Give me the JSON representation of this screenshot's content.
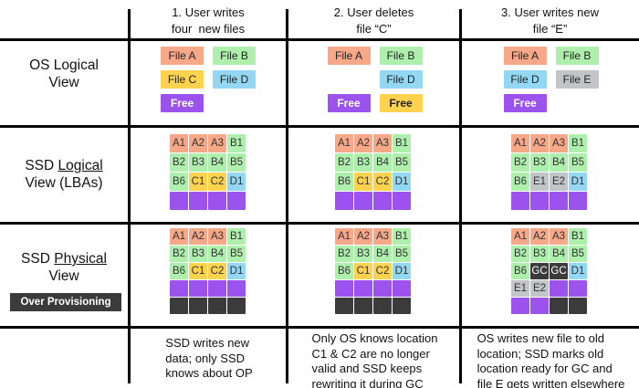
{
  "colors": {
    "file_a_salmon": "#F6A888",
    "file_b_green": "#AFEFAE",
    "file_c_yellow": "#FCD24E",
    "file_d_blue": "#93D7F3",
    "file_e_gray": "#C1C5C7",
    "free_purple": "#9C53EE",
    "dark_overprovision": "#3B3B3B",
    "border_black": "#000000"
  },
  "row_labels": {
    "os": {
      "line1": "OS Logical",
      "line2": "View"
    },
    "logical": {
      "pre": "SSD ",
      "word": "Logical",
      "line2": "View (LBAs)"
    },
    "physical": {
      "pre": "SSD ",
      "word": "Physical",
      "line2": "View"
    },
    "over_provisioning": "Over Provisioning"
  },
  "columns": [
    {
      "header_line1": "1. User writes",
      "header_line2": "four  new files",
      "os": [
        [
          {
            "t": "File A",
            "k": "a"
          },
          {
            "t": "File B",
            "k": "b"
          }
        ],
        [
          {
            "t": "File C",
            "k": "c"
          },
          {
            "t": "File D",
            "k": "d"
          }
        ],
        [
          {
            "t": "Free",
            "k": "free"
          },
          null
        ]
      ],
      "lg": [
        {
          "t": "A1",
          "k": "a"
        },
        {
          "t": "A2",
          "k": "a"
        },
        {
          "t": "A3",
          "k": "a"
        },
        {
          "t": "B1",
          "k": "b"
        },
        {
          "t": "B2",
          "k": "b"
        },
        {
          "t": "B3",
          "k": "b"
        },
        {
          "t": "B4",
          "k": "b"
        },
        {
          "t": "B5",
          "k": "b"
        },
        {
          "t": "B6",
          "k": "b"
        },
        {
          "t": "C1",
          "k": "c"
        },
        {
          "t": "C2",
          "k": "c"
        },
        {
          "t": "D1",
          "k": "d"
        },
        {
          "k": "free"
        },
        {
          "k": "free"
        },
        {
          "k": "free"
        },
        {
          "k": "free"
        }
      ],
      "ph": [
        {
          "t": "A1",
          "k": "a"
        },
        {
          "t": "A2",
          "k": "a"
        },
        {
          "t": "A3",
          "k": "a"
        },
        {
          "t": "B1",
          "k": "b"
        },
        {
          "t": "B2",
          "k": "b"
        },
        {
          "t": "B3",
          "k": "b"
        },
        {
          "t": "B4",
          "k": "b"
        },
        {
          "t": "B5",
          "k": "b"
        },
        {
          "t": "B6",
          "k": "b"
        },
        {
          "t": "C1",
          "k": "c"
        },
        {
          "t": "C2",
          "k": "c"
        },
        {
          "t": "D1",
          "k": "d"
        },
        {
          "k": "free"
        },
        {
          "k": "free"
        },
        {
          "k": "free"
        },
        {
          "k": "free"
        },
        {
          "k": "op"
        },
        {
          "k": "op"
        },
        {
          "k": "op"
        },
        {
          "k": "op"
        }
      ],
      "caption": "SSD writes new\ndata; only SSD\nknows about OP"
    },
    {
      "header_line1": "2. User deletes",
      "header_line2": "file “C”",
      "os": [
        [
          {
            "t": "File A",
            "k": "a"
          },
          {
            "t": "File B",
            "k": "b"
          }
        ],
        [
          null,
          {
            "t": "File D",
            "k": "d"
          }
        ],
        [
          {
            "t": "Free",
            "k": "free"
          },
          {
            "t": "Free",
            "k": "c",
            "bold": true
          }
        ]
      ],
      "lg": [
        {
          "t": "A1",
          "k": "a"
        },
        {
          "t": "A2",
          "k": "a"
        },
        {
          "t": "A3",
          "k": "a"
        },
        {
          "t": "B1",
          "k": "b"
        },
        {
          "t": "B2",
          "k": "b"
        },
        {
          "t": "B3",
          "k": "b"
        },
        {
          "t": "B4",
          "k": "b"
        },
        {
          "t": "B5",
          "k": "b"
        },
        {
          "t": "B6",
          "k": "b"
        },
        {
          "t": "C1",
          "k": "c"
        },
        {
          "t": "C2",
          "k": "c"
        },
        {
          "t": "D1",
          "k": "d"
        },
        {
          "k": "free"
        },
        {
          "k": "free"
        },
        {
          "k": "free"
        },
        {
          "k": "free"
        }
      ],
      "ph": [
        {
          "t": "A1",
          "k": "a"
        },
        {
          "t": "A2",
          "k": "a"
        },
        {
          "t": "A3",
          "k": "a"
        },
        {
          "t": "B1",
          "k": "b"
        },
        {
          "t": "B2",
          "k": "b"
        },
        {
          "t": "B3",
          "k": "b"
        },
        {
          "t": "B4",
          "k": "b"
        },
        {
          "t": "B5",
          "k": "b"
        },
        {
          "t": "B6",
          "k": "b"
        },
        {
          "t": "C1",
          "k": "c"
        },
        {
          "t": "C2",
          "k": "c"
        },
        {
          "t": "D1",
          "k": "d"
        },
        {
          "k": "free"
        },
        {
          "k": "free"
        },
        {
          "k": "free"
        },
        {
          "k": "free"
        },
        {
          "k": "op"
        },
        {
          "k": "op"
        },
        {
          "k": "op"
        },
        {
          "k": "op"
        }
      ],
      "caption": "Only OS knows location\nC1 & C2 are no longer\nvalid and SSD keeps\nrewriting it during GC"
    },
    {
      "header_line1": "3. User writes new",
      "header_line2": "file “E”",
      "os": [
        [
          {
            "t": "File A",
            "k": "a"
          },
          {
            "t": "File B",
            "k": "b"
          }
        ],
        [
          {
            "t": "File D",
            "k": "d"
          },
          {
            "t": "File E",
            "k": "e"
          }
        ],
        [
          {
            "t": "Free",
            "k": "free"
          },
          null
        ]
      ],
      "lg": [
        {
          "t": "A1",
          "k": "a"
        },
        {
          "t": "A2",
          "k": "a"
        },
        {
          "t": "A3",
          "k": "a"
        },
        {
          "t": "B1",
          "k": "b"
        },
        {
          "t": "B2",
          "k": "b"
        },
        {
          "t": "B3",
          "k": "b"
        },
        {
          "t": "B4",
          "k": "b"
        },
        {
          "t": "B5",
          "k": "b"
        },
        {
          "t": "B6",
          "k": "b"
        },
        {
          "t": "E1",
          "k": "e"
        },
        {
          "t": "E2",
          "k": "e"
        },
        {
          "t": "D1",
          "k": "d"
        },
        {
          "k": "free"
        },
        {
          "k": "free"
        },
        {
          "k": "free"
        },
        {
          "k": "free"
        }
      ],
      "ph": [
        {
          "t": "A1",
          "k": "a"
        },
        {
          "t": "A2",
          "k": "a"
        },
        {
          "t": "A3",
          "k": "a"
        },
        {
          "t": "B1",
          "k": "b"
        },
        {
          "t": "B2",
          "k": "b"
        },
        {
          "t": "B3",
          "k": "b"
        },
        {
          "t": "B4",
          "k": "b"
        },
        {
          "t": "B5",
          "k": "b"
        },
        {
          "t": "B6",
          "k": "b"
        },
        {
          "t": "GC",
          "k": "gc"
        },
        {
          "t": "GC",
          "k": "gc"
        },
        {
          "t": "D1",
          "k": "d"
        },
        {
          "t": "E1",
          "k": "e"
        },
        {
          "t": "E2",
          "k": "e"
        },
        {
          "k": "free"
        },
        {
          "k": "free"
        },
        {
          "k": "free"
        },
        {
          "k": "free"
        },
        {
          "k": "op"
        },
        {
          "k": "op"
        }
      ],
      "caption": "OS writes new file to old\nlocation; SSD marks old\nlocation ready for GC and\nfile E gets written elsewhere"
    }
  ]
}
